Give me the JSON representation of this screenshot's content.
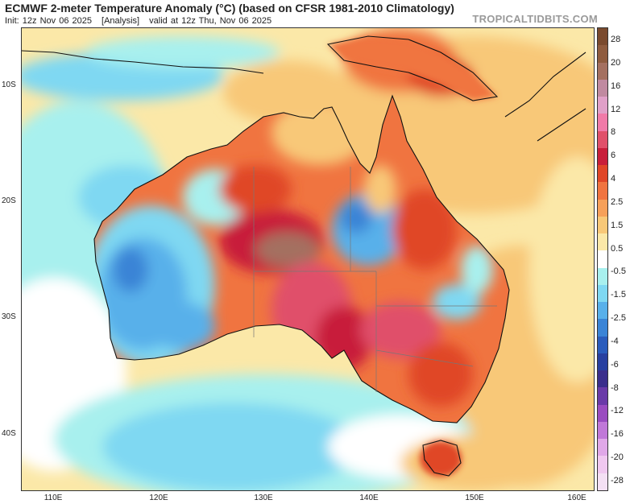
{
  "header": {
    "title": "ECMWF 2-meter Temperature Anomaly (°C) (based on CFSR 1981-2010 Climatology)",
    "init": "Init: 12z Nov 06 2025",
    "analysis": "[Analysis]",
    "valid": "valid at 12z Thu, Nov 06 2025",
    "brand": "TROPICALTIDBITS.COM"
  },
  "axes": {
    "lat_labels": [
      "10S",
      "20S",
      "30S",
      "40S"
    ],
    "lon_labels": [
      "110E",
      "120E",
      "130E",
      "140E",
      "150E",
      "160E"
    ]
  },
  "colorbar": {
    "labels": [
      "28",
      "20",
      "16",
      "12",
      "8",
      "6",
      "4",
      "2.5",
      "1.5",
      "0.5",
      "-0.5",
      "-1.5",
      "-2.5",
      "-4",
      "-6",
      "-8",
      "-12",
      "-16",
      "-20",
      "-28"
    ],
    "colors": [
      "#7a4a2e",
      "#8f5c3f",
      "#a47060",
      "#c08aa0",
      "#e0a0c8",
      "#f07aa8",
      "#e0506a",
      "#c81e3a",
      "#e04628",
      "#f07440",
      "#f6a05a",
      "#f8c878",
      "#fbe8a8",
      "#ffffff",
      "#a8f0ee",
      "#7fd8f2",
      "#58b0ea",
      "#3a84d6",
      "#2a5cbc",
      "#2840a0",
      "#3a2e8c",
      "#6a3aa8",
      "#9a4cc0",
      "#c078d8",
      "#e0a8e8",
      "#f0c8f0",
      "#f4e0f4"
    ]
  }
}
